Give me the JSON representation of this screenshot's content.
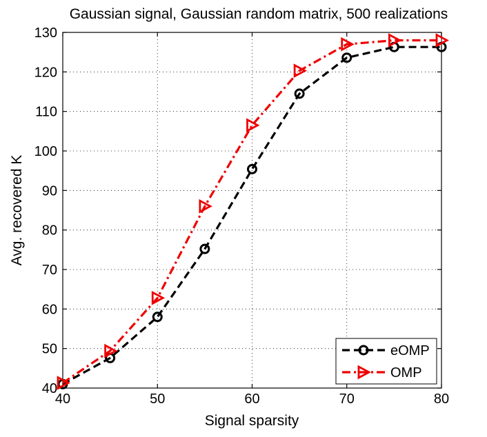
{
  "chart_data": {
    "type": "line",
    "title": "Gaussian signal, Gaussian random matrix, 500 realizations",
    "xlabel": "Signal sparsity",
    "ylabel": "Avg. recovered K",
    "xlim": [
      40,
      80
    ],
    "ylim": [
      40,
      130
    ],
    "xticks": [
      40,
      50,
      60,
      70,
      80
    ],
    "yticks": [
      40,
      50,
      60,
      70,
      80,
      90,
      100,
      110,
      120,
      130
    ],
    "grid": true,
    "legend_position": "bottom-right",
    "x": [
      40,
      45,
      50,
      55,
      60,
      65,
      70,
      75,
      80
    ],
    "series": [
      {
        "name": "eOMP",
        "values": [
          41.0,
          47.6,
          58.0,
          75.2,
          95.4,
          114.5,
          123.6,
          126.3,
          126.3
        ],
        "color": "#000000",
        "line_style": "dashed",
        "marker": "circle"
      },
      {
        "name": "OMP",
        "values": [
          41.3,
          49.4,
          62.8,
          86.0,
          106.5,
          120.3,
          127.0,
          128.0,
          128.0
        ],
        "color": "#ee0000",
        "line_style": "dash-dot",
        "marker": "triangle-right"
      }
    ]
  }
}
